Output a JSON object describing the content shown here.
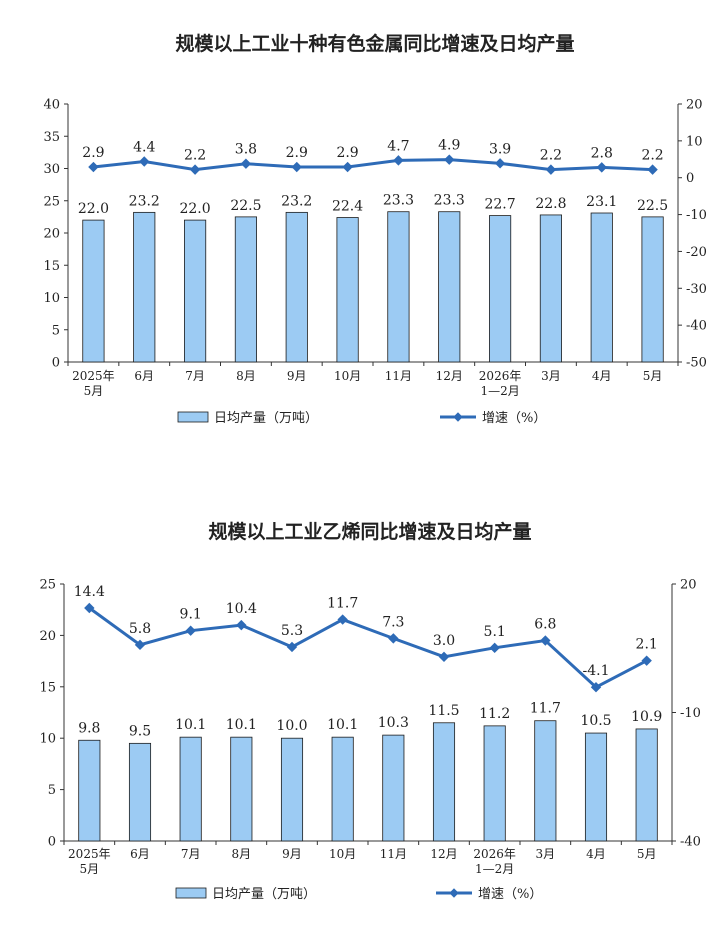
{
  "chart_data": [
    {
      "type": "bar",
      "title": "规模以上工业十种有色金属同比增速及日均产量",
      "categories": [
        "2025年\n5月",
        "6月",
        "7月",
        "8月",
        "9月",
        "10月",
        "11月",
        "12月",
        "2026年\n1—2月",
        "3月",
        "4月",
        "5月"
      ],
      "series": [
        {
          "name": "日均产量（万吨）",
          "type": "bar",
          "axis": "left",
          "values": [
            22.0,
            23.2,
            22.0,
            22.5,
            23.2,
            22.4,
            23.3,
            23.3,
            22.7,
            22.8,
            23.1,
            22.5
          ],
          "labels": [
            "22.0",
            "23.2",
            "22.0",
            "22.5",
            "23.2",
            "22.4",
            "23.3",
            "23.3",
            "22.7",
            "22.8",
            "23.1",
            "22.5"
          ]
        },
        {
          "name": "增速（%）",
          "type": "line",
          "axis": "right",
          "values": [
            2.9,
            4.4,
            2.2,
            3.8,
            2.9,
            2.9,
            4.7,
            4.9,
            3.9,
            2.2,
            2.8,
            2.2
          ],
          "labels": [
            "2.9",
            "4.4",
            "2.2",
            "3.8",
            "2.9",
            "2.9",
            "4.7",
            "4.9",
            "3.9",
            "2.2",
            "2.8",
            "2.2"
          ]
        }
      ],
      "left_axis": {
        "min": 0,
        "max": 40,
        "ticks": [
          "0",
          "5",
          "10",
          "15",
          "20",
          "25",
          "30",
          "35",
          "40"
        ]
      },
      "right_axis": {
        "min": -50,
        "max": 20,
        "ticks": [
          "-50",
          "-40",
          "-30",
          "-20",
          "-10",
          "0",
          "10",
          "20"
        ]
      },
      "legend_position": "bottom",
      "colors": {
        "bar": "#9ccbf3",
        "line": "#2e6bb7"
      }
    },
    {
      "type": "bar",
      "title": "规模以上工业乙烯同比增速及日均产量",
      "categories": [
        "2025年\n5月",
        "6月",
        "7月",
        "8月",
        "9月",
        "10月",
        "11月",
        "12月",
        "2026年\n1—2月",
        "3月",
        "4月",
        "5月"
      ],
      "series": [
        {
          "name": "日均产量（万吨）",
          "type": "bar",
          "axis": "left",
          "values": [
            9.8,
            9.5,
            10.1,
            10.1,
            10.0,
            10.1,
            10.3,
            11.5,
            11.2,
            11.7,
            10.5,
            10.9
          ],
          "labels": [
            "9.8",
            "9.5",
            "10.1",
            "10.1",
            "10.0",
            "10.1",
            "10.3",
            "11.5",
            "11.2",
            "11.7",
            "10.5",
            "10.9"
          ]
        },
        {
          "name": "增速（%）",
          "type": "line",
          "axis": "right",
          "values": [
            14.4,
            5.8,
            9.1,
            10.4,
            5.3,
            11.7,
            7.3,
            3.0,
            5.1,
            6.8,
            -4.1,
            2.1
          ],
          "labels": [
            "14.4",
            "5.8",
            "9.1",
            "10.4",
            "5.3",
            "11.7",
            "7.3",
            "3.0",
            "5.1",
            "6.8",
            "-4.1",
            "2.1"
          ]
        }
      ],
      "left_axis": {
        "min": 0,
        "max": 25,
        "ticks": [
          "0",
          "5",
          "10",
          "15",
          "20",
          "25"
        ]
      },
      "right_axis": {
        "min": -40,
        "max": 20,
        "ticks": [
          "-40",
          "-10",
          "20"
        ]
      },
      "legend_position": "bottom",
      "colors": {
        "bar": "#9ccbf3",
        "line": "#2e6bb7"
      }
    }
  ]
}
